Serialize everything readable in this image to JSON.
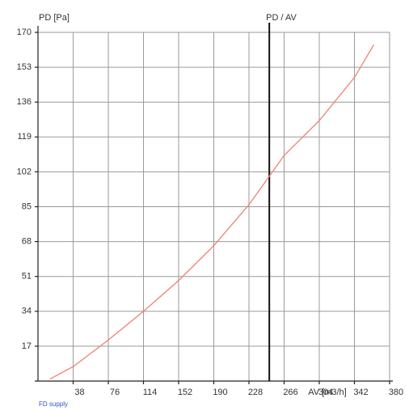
{
  "chart_data": {
    "type": "line",
    "title": "PD / AV",
    "y_label": "PD [Pa]",
    "x_label": "AV [m3/h]",
    "x": [
      13,
      38,
      76,
      114,
      152,
      190,
      228,
      266,
      304,
      342,
      363
    ],
    "series": [
      {
        "name": "FD supply",
        "color": "#f08070",
        "values": [
          1,
          7,
          20,
          34,
          49,
          66,
          86,
          110,
          127,
          148,
          164
        ]
      }
    ],
    "marker_x": 250,
    "xlim": [
      0,
      380
    ],
    "xticks": [
      38,
      76,
      114,
      152,
      190,
      228,
      266,
      304,
      342,
      380
    ],
    "ylim": [
      0,
      170
    ],
    "yticks": [
      17,
      34,
      51,
      68,
      85,
      102,
      119,
      136,
      153,
      170
    ],
    "grid": true
  }
}
